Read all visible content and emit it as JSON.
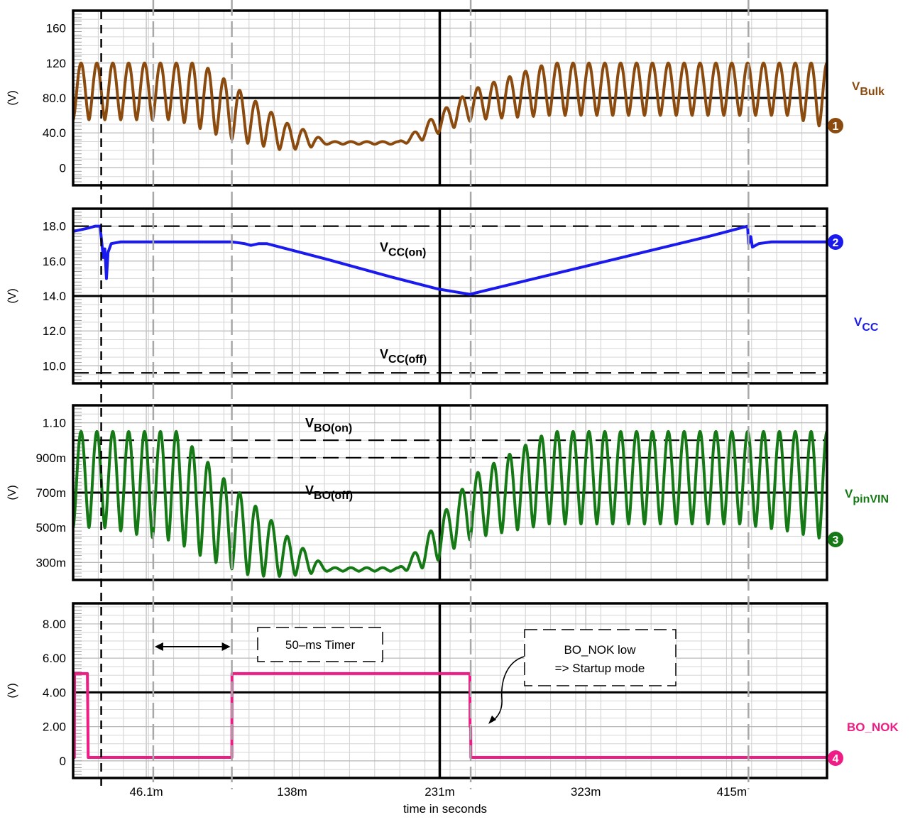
{
  "chart_data": {
    "type": "line",
    "xlabel": "time in seconds",
    "x_ticks": [
      "46.1m",
      "138m",
      "231m",
      "323m",
      "415m"
    ],
    "x_tick_values": [
      0.0461,
      0.138,
      0.231,
      0.323,
      0.415
    ],
    "xlim": [
      0,
      0.475
    ],
    "panels": [
      {
        "id": "vbulk",
        "ylabel": "(V)",
        "signal_name": "V",
        "signal_sub": "Bulk",
        "marker": "1",
        "color": "#8B4A0E",
        "ylim": [
          -20,
          180
        ],
        "y_ticks": [
          "160",
          "120",
          "80.0",
          "40.0",
          "0"
        ],
        "y_tick_values": [
          160,
          120,
          80,
          40,
          0
        ],
        "bold_lines": [
          80
        ],
        "series": [
          {
            "name": "VBulk",
            "x": [
              0.0,
              0.02,
              0.045,
              0.065,
              0.08,
              0.095,
              0.11,
              0.122,
              0.132,
              0.145,
              0.16,
              0.175,
              0.19,
              0.205,
              0.218,
              0.228,
              0.24,
              0.252,
              0.3,
              0.4,
              0.42,
              0.45,
              0.475
            ],
            "peak": [
              120,
              120,
              120,
              120,
              120,
              102,
              82,
              68,
              53,
              44,
              30,
              30,
              30,
              30,
              44,
              60,
              75,
              90,
              120,
              120,
              120,
              120,
              120
            ],
            "trough": [
              55,
              55,
              55,
              55,
              45,
              35,
              28,
              24,
              20,
              22,
              27,
              27,
              27,
              27,
              30,
              38,
              46,
              55,
              60,
              60,
              60,
              60,
              45
            ],
            "period": 0.01
          }
        ]
      },
      {
        "id": "vcc",
        "ylabel": "(V)",
        "signal_name": "V",
        "signal_sub": "CC",
        "marker": "2",
        "color": "#1A1AEE",
        "ylim": [
          9.0,
          19.0
        ],
        "y_ticks": [
          "18.0",
          "16.0",
          "14.0",
          "12.0",
          "10.0"
        ],
        "y_tick_values": [
          18,
          16,
          14,
          12,
          10
        ],
        "bold_lines": [
          14
        ],
        "thresholds": [
          {
            "label": "V",
            "sub": "CC(on)",
            "value": 18.0
          },
          {
            "label": "V",
            "sub": "CC(off)",
            "value": 9.6
          }
        ],
        "series": [
          {
            "name": "VCC",
            "x": [
              0.0,
              0.005,
              0.01,
              0.014,
              0.017,
              0.018,
              0.019,
              0.02,
              0.021,
              0.022,
              0.024,
              0.03,
              0.06,
              0.09,
              0.1,
              0.108,
              0.112,
              0.117,
              0.122,
              0.16,
              0.2,
              0.23,
              0.25,
              0.3,
              0.35,
              0.4,
              0.425,
              0.4255,
              0.427,
              0.428,
              0.432,
              0.44,
              0.475
            ],
            "y": [
              17.7,
              17.8,
              17.9,
              18.0,
              18.0,
              17.1,
              16.2,
              16.7,
              15.0,
              16.5,
              17.0,
              17.1,
              17.1,
              17.1,
              17.1,
              17.0,
              16.9,
              17.0,
              17.0,
              16.1,
              15.1,
              14.4,
              14.1,
              15.2,
              16.3,
              17.4,
              18.0,
              17.0,
              17.4,
              16.8,
              17.0,
              17.1,
              17.1
            ]
          }
        ]
      },
      {
        "id": "vpinvin",
        "ylabel": "(V)",
        "signal_name": "V",
        "signal_sub": "pinVIN",
        "marker": "3",
        "color": "#157A15",
        "ylim": [
          0.2,
          1.2
        ],
        "y_ticks": [
          "1.10",
          "900m",
          "700m",
          "500m",
          "300m"
        ],
        "y_tick_values": [
          1.1,
          0.9,
          0.7,
          0.5,
          0.3
        ],
        "bold_lines": [
          0.7
        ],
        "thresholds": [
          {
            "label": "V",
            "sub": "BO(on)",
            "value": 1.0
          },
          {
            "label": "V",
            "sub": "BO(off)",
            "value": 0.9
          }
        ],
        "series": [
          {
            "name": "VpinVIN",
            "x": [
              0.0,
              0.02,
              0.045,
              0.065,
              0.08,
              0.095,
              0.11,
              0.122,
              0.132,
              0.145,
              0.16,
              0.175,
              0.19,
              0.205,
              0.218,
              0.228,
              0.24,
              0.252,
              0.3,
              0.4,
              0.42,
              0.45,
              0.475
            ],
            "peak": [
              1.05,
              1.05,
              1.05,
              1.05,
              0.92,
              0.78,
              0.66,
              0.57,
              0.47,
              0.38,
              0.27,
              0.27,
              0.27,
              0.27,
              0.38,
              0.52,
              0.66,
              0.8,
              1.05,
              1.05,
              1.05,
              1.05,
              1.05
            ],
            "trough": [
              0.5,
              0.5,
              0.45,
              0.42,
              0.34,
              0.28,
              0.23,
              0.22,
              0.22,
              0.23,
              0.25,
              0.25,
              0.25,
              0.25,
              0.26,
              0.3,
              0.38,
              0.44,
              0.52,
              0.52,
              0.52,
              0.48,
              0.43
            ],
            "period": 0.01
          }
        ]
      },
      {
        "id": "bonok",
        "ylabel": "(V)",
        "signal_name": "BO_NOK",
        "signal_sub": "",
        "marker": "4",
        "color": "#EE1C84",
        "ylim": [
          -1.0,
          9.2
        ],
        "y_ticks": [
          "8.00",
          "6.00",
          "4.00",
          "2.00",
          "0"
        ],
        "y_tick_values": [
          8,
          6,
          4,
          2,
          0
        ],
        "bold_lines": [
          4
        ],
        "series": [
          {
            "name": "BO_NOK",
            "x": [
              0.0,
              0.0008,
              0.0009,
              0.009,
              0.0095,
              0.1,
              0.1001,
              0.12,
              0.25,
              0.2501,
              0.2505,
              0.2506,
              0.475
            ],
            "y": [
              0.2,
              0.2,
              5.1,
              5.1,
              0.2,
              0.2,
              5.1,
              5.1,
              5.1,
              2.0,
              2.0,
              0.2,
              0.2
            ]
          }
        ],
        "callouts": [
          {
            "id": "timer",
            "text": [
              "50–ms Timer"
            ]
          },
          {
            "id": "startup",
            "text": [
              "BO_NOK low",
              "=> Startup mode"
            ]
          }
        ]
      }
    ]
  }
}
